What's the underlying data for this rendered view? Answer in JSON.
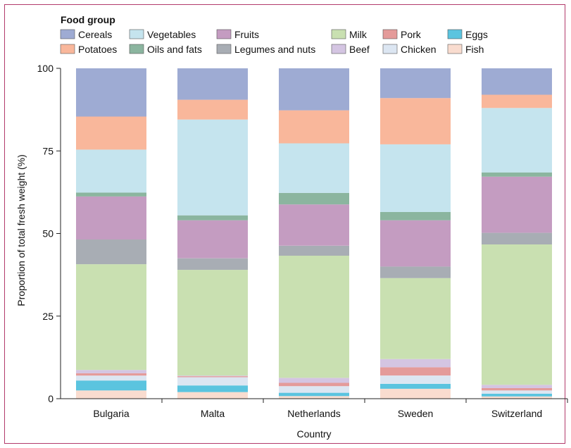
{
  "chart_data": {
    "type": "bar",
    "stacked": true,
    "legend_title": "Food group",
    "legend_position": "top-left",
    "categories": [
      "Bulgaria",
      "Malta",
      "Netherlands",
      "Sweden",
      "Switzerland"
    ],
    "xlabel": "Country",
    "ylabel": "Proportion of total fresh weight (%)",
    "ylim": [
      0,
      100
    ],
    "yticks": [
      "0",
      "25",
      "50",
      "75",
      "100"
    ],
    "grid": false,
    "series": [
      {
        "name": "Fish",
        "color": "#f9dccf",
        "values": [
          2.5,
          2.0,
          0.8,
          3.0,
          0.7
        ]
      },
      {
        "name": "Eggs",
        "color": "#5bc4df",
        "values": [
          3.0,
          2.0,
          1.0,
          1.5,
          0.8
        ]
      },
      {
        "name": "Chicken",
        "color": "#dce6f2",
        "values": [
          1.5,
          2.5,
          2.0,
          2.5,
          1.0
        ]
      },
      {
        "name": "Pork",
        "color": "#e49b9a",
        "values": [
          0.7,
          0.3,
          1.0,
          2.5,
          0.7
        ]
      },
      {
        "name": "Beef",
        "color": "#d4c5e2",
        "values": [
          1.0,
          0.2,
          1.5,
          2.5,
          1.0
        ]
      },
      {
        "name": "Milk",
        "color": "#c9e0b1",
        "values": [
          32.0,
          32.0,
          37.0,
          24.5,
          42.5
        ]
      },
      {
        "name": "Legumes and nuts",
        "color": "#a8adb4",
        "values": [
          7.5,
          3.5,
          3.0,
          3.5,
          3.5
        ]
      },
      {
        "name": "Fruits",
        "color": "#c49cc1",
        "values": [
          13.0,
          11.5,
          12.5,
          14.0,
          17.0
        ]
      },
      {
        "name": "Oils and fats",
        "color": "#8bb59f",
        "values": [
          1.2,
          1.5,
          3.5,
          2.5,
          1.3
        ]
      },
      {
        "name": "Vegetables",
        "color": "#c5e4ee",
        "values": [
          13.0,
          29.0,
          15.0,
          20.5,
          19.5
        ]
      },
      {
        "name": "Potatoes",
        "color": "#f9b79b",
        "values": [
          10.0,
          6.0,
          10.0,
          14.0,
          4.0
        ]
      },
      {
        "name": "Cereals",
        "color": "#9eabd3",
        "values": [
          14.6,
          9.5,
          12.7,
          9.0,
          8.0
        ]
      }
    ],
    "legend_order": [
      "Cereals",
      "Vegetables",
      "Fruits",
      "Milk",
      "Pork",
      "Eggs",
      "Potatoes",
      "Oils and fats",
      "Legumes and nuts",
      "Beef",
      "Chicken",
      "Fish"
    ]
  }
}
